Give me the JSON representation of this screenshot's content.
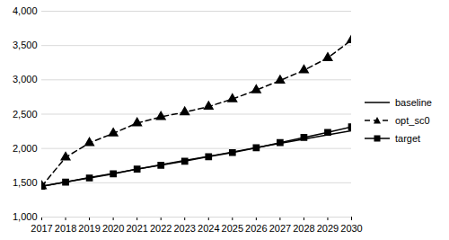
{
  "chart_data": {
    "type": "line",
    "x": [
      2017,
      2018,
      2019,
      2020,
      2021,
      2022,
      2023,
      2024,
      2025,
      2026,
      2027,
      2028,
      2029,
      2030
    ],
    "xlim": [
      2017,
      2030
    ],
    "xticks": [
      2017,
      2018,
      2019,
      2020,
      2021,
      2022,
      2023,
      2024,
      2025,
      2026,
      2027,
      2028,
      2029,
      2030
    ],
    "ylim": [
      1000,
      4000
    ],
    "yticks": [
      {
        "value": 1000,
        "label": "1,000"
      },
      {
        "value": 1500,
        "label": "1,500"
      },
      {
        "value": 2000,
        "label": "2,000"
      },
      {
        "value": 2500,
        "label": "2,500"
      },
      {
        "value": 3000,
        "label": "3,000"
      },
      {
        "value": 3500,
        "label": "3,500"
      },
      {
        "value": 4000,
        "label": "4,000"
      }
    ],
    "grid": true,
    "legend": "right",
    "series": [
      {
        "name": "baseline",
        "color": "#000000",
        "marker": "none",
        "line_style": "solid",
        "values": [
          1450,
          1512,
          1575,
          1637,
          1699,
          1762,
          1824,
          1886,
          1948,
          2011,
          2073,
          2135,
          2198,
          2260
        ]
      },
      {
        "name": "opt_sc0",
        "color": "#000000",
        "marker": "triangle",
        "line_style": "dashed",
        "values": [
          1450,
          1870,
          2080,
          2220,
          2370,
          2460,
          2530,
          2610,
          2720,
          2850,
          2990,
          3140,
          3320,
          3580
        ]
      },
      {
        "name": "target",
        "color": "#000000",
        "marker": "square",
        "line_style": "solid",
        "values": [
          1450,
          1510,
          1570,
          1630,
          1700,
          1755,
          1815,
          1880,
          1940,
          2010,
          2085,
          2160,
          2235,
          2315
        ]
      }
    ]
  }
}
